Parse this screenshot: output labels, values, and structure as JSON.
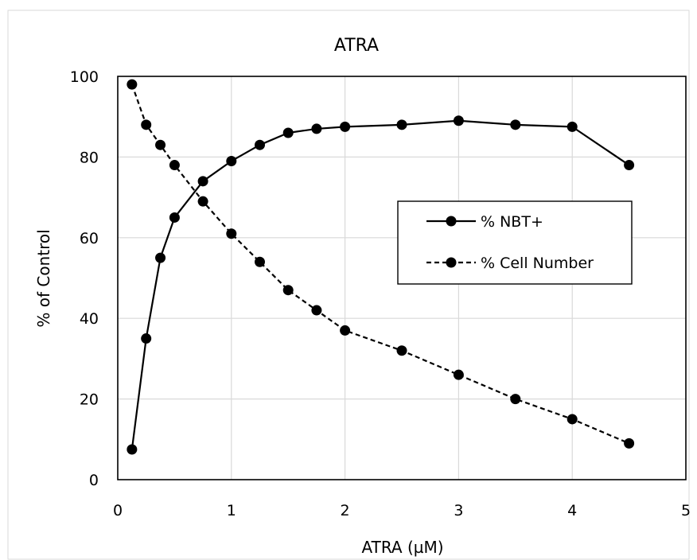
{
  "chart_data": {
    "type": "line",
    "title": "ATRA",
    "xlabel": "ATRA (µM)",
    "ylabel": "% of Control",
    "xlim": [
      0,
      5
    ],
    "ylim": [
      0,
      100
    ],
    "xticks": [
      0,
      1,
      2,
      3,
      4,
      5
    ],
    "yticks": [
      0,
      20,
      40,
      60,
      80,
      100
    ],
    "grid": true,
    "legend_position": "right",
    "series": [
      {
        "name": "% NBT+",
        "line_style": "solid",
        "marker": "circle",
        "color": "#000000",
        "x": [
          0.125,
          0.25,
          0.375,
          0.5,
          0.75,
          1,
          1.25,
          1.5,
          1.75,
          2,
          2.5,
          3,
          3.5,
          4,
          4.5
        ],
        "y": [
          7.5,
          35,
          55,
          65,
          74,
          79,
          83,
          86,
          87,
          87.5,
          88,
          89,
          88,
          87.5,
          78
        ]
      },
      {
        "name": "% Cell Number",
        "line_style": "dashed",
        "marker": "circle",
        "color": "#000000",
        "x": [
          0.125,
          0.25,
          0.375,
          0.5,
          0.75,
          1,
          1.25,
          1.5,
          1.75,
          2,
          2.5,
          3,
          3.5,
          4,
          4.5
        ],
        "y": [
          98,
          88,
          83,
          78,
          69,
          61,
          54,
          47,
          42,
          37,
          32,
          26,
          20,
          15,
          9
        ]
      }
    ]
  }
}
